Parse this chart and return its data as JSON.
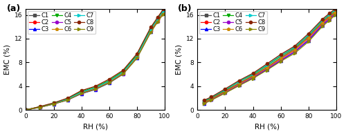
{
  "rh_adsorption": [
    0,
    10,
    20,
    30,
    40,
    50,
    60,
    70,
    80,
    90,
    95,
    99
  ],
  "rh_desorption": [
    5,
    10,
    20,
    30,
    40,
    50,
    60,
    70,
    80,
    90,
    95,
    99
  ],
  "series": [
    {
      "label": "C1",
      "color": "#4d4d4d",
      "marker": "s",
      "mfc": "#4d4d4d",
      "adsorption": [
        0.0,
        0.45,
        1.05,
        1.75,
        2.85,
        3.55,
        4.65,
        6.15,
        9.0,
        13.5,
        15.4,
        16.7
      ],
      "desorption": [
        1.3,
        1.9,
        3.2,
        4.5,
        5.75,
        7.2,
        8.8,
        10.3,
        12.3,
        14.8,
        15.8,
        16.5
      ]
    },
    {
      "label": "C2",
      "color": "#ff0000",
      "marker": "o",
      "mfc": "#ff0000",
      "adsorption": [
        0.0,
        0.48,
        1.08,
        1.82,
        2.98,
        3.68,
        4.82,
        6.35,
        9.15,
        13.65,
        15.25,
        16.65
      ],
      "desorption": [
        1.2,
        1.8,
        3.1,
        4.4,
        5.6,
        7.05,
        8.6,
        10.05,
        12.1,
        14.6,
        15.55,
        16.35
      ]
    },
    {
      "label": "C3",
      "color": "#0000ff",
      "marker": "^",
      "mfc": "#0000ff",
      "adsorption": [
        0.0,
        0.42,
        0.98,
        1.65,
        2.72,
        3.42,
        4.52,
        6.02,
        8.75,
        13.15,
        15.05,
        16.4
      ],
      "desorption": [
        1.1,
        1.7,
        2.9,
        4.15,
        5.35,
        6.8,
        8.3,
        9.75,
        11.7,
        14.25,
        15.25,
        16.1
      ]
    },
    {
      "label": "C4",
      "color": "#00aa00",
      "marker": "v",
      "mfc": "#00aa00",
      "adsorption": [
        0.0,
        0.52,
        1.12,
        1.9,
        3.1,
        3.82,
        4.98,
        6.52,
        9.25,
        13.75,
        15.45,
        16.82
      ],
      "desorption": [
        1.45,
        2.05,
        3.35,
        4.75,
        5.95,
        7.45,
        9.05,
        10.5,
        12.55,
        15.05,
        16.0,
        16.75
      ]
    },
    {
      "label": "C5",
      "color": "#9900cc",
      "marker": "o",
      "mfc": "#9900cc",
      "adsorption": [
        0.0,
        0.44,
        1.02,
        1.7,
        2.82,
        3.52,
        4.62,
        6.1,
        8.85,
        13.25,
        14.95,
        16.3
      ],
      "desorption": [
        1.15,
        1.72,
        2.95,
        4.22,
        5.45,
        6.88,
        8.38,
        9.82,
        11.82,
        14.38,
        15.32,
        16.18
      ]
    },
    {
      "label": "C6",
      "color": "#cc8800",
      "marker": "p",
      "mfc": "#cc8800",
      "adsorption": [
        0.0,
        0.5,
        1.06,
        1.76,
        2.92,
        3.62,
        4.72,
        6.22,
        8.92,
        13.38,
        15.08,
        16.48
      ],
      "desorption": [
        1.28,
        1.85,
        3.08,
        4.38,
        5.62,
        7.08,
        8.68,
        10.1,
        12.12,
        14.68,
        15.65,
        16.42
      ]
    },
    {
      "label": "C7",
      "color": "#00cccc",
      "marker": ">",
      "mfc": "#00cccc",
      "adsorption": [
        0.0,
        0.5,
        1.1,
        1.82,
        2.98,
        3.72,
        4.82,
        6.35,
        9.08,
        13.55,
        15.35,
        16.65
      ],
      "desorption": [
        1.55,
        2.1,
        3.42,
        4.82,
        6.08,
        7.58,
        9.18,
        10.6,
        12.65,
        15.12,
        16.08,
        16.88
      ]
    },
    {
      "label": "C8",
      "color": "#882200",
      "marker": "o",
      "mfc": "#882200",
      "adsorption": [
        0.0,
        0.55,
        1.18,
        1.98,
        3.25,
        3.98,
        5.18,
        6.68,
        9.45,
        13.92,
        15.62,
        16.95
      ],
      "desorption": [
        1.65,
        2.18,
        3.55,
        4.95,
        6.18,
        7.75,
        9.35,
        10.75,
        12.85,
        15.28,
        16.25,
        17.0
      ]
    },
    {
      "label": "C9",
      "color": "#888800",
      "marker": ">",
      "mfc": "#888800",
      "adsorption": [
        0.0,
        0.4,
        0.98,
        1.65,
        2.75,
        3.45,
        4.55,
        6.0,
        8.68,
        13.05,
        14.82,
        16.12
      ],
      "desorption": [
        1.08,
        1.62,
        2.82,
        4.08,
        5.28,
        6.68,
        8.18,
        9.52,
        11.48,
        14.05,
        15.05,
        15.92
      ]
    }
  ],
  "xlabel": "RH (%)",
  "ylabel": "EMC (%)",
  "ylim": [
    0,
    17
  ],
  "yticks": [
    0,
    4,
    8,
    12,
    16
  ],
  "xticks": [
    0,
    20,
    40,
    60,
    80,
    100
  ],
  "label_a": "(a)",
  "label_b": "(b)",
  "linewidth": 0.9,
  "markersize": 3.0,
  "legend_ncol": 3,
  "legend_fontsize": 6.0,
  "axis_fontsize": 7.5,
  "tick_fontsize": 6.5
}
